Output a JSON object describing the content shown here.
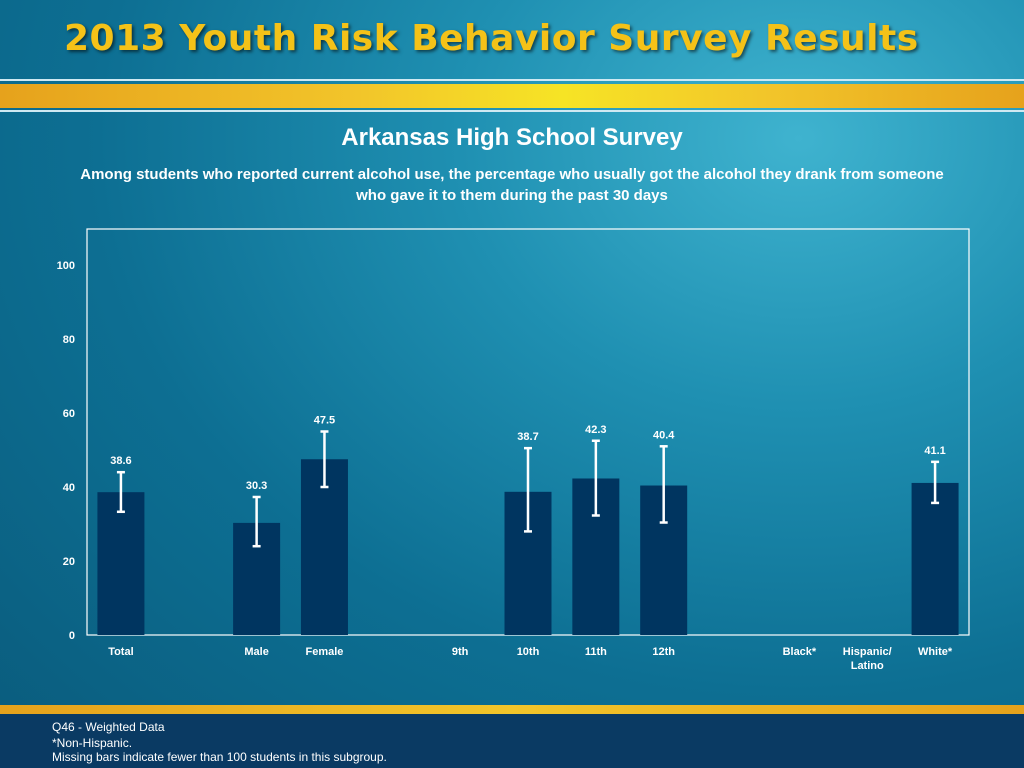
{
  "banner": {
    "title": "2013 Youth Risk Behavior Survey Results"
  },
  "colors": {
    "title_gold": "#f4c218",
    "bar_fill": "#003560",
    "error_bar": "#ffffff",
    "band_gold": "#f2c52a",
    "footer_bg": "#0a3a63"
  },
  "chart_data": {
    "type": "bar",
    "title": "Arkansas High School Survey",
    "subtitle": "Among students who reported current alcohol use, the percentage who usually got the alcohol they drank from someone who gave it to them during the past 30 days",
    "xlabel": "",
    "ylabel": "",
    "ylim": [
      0,
      110
    ],
    "yticks": [
      0,
      20,
      40,
      60,
      80,
      100
    ],
    "grid": false,
    "categories": [
      "Total",
      "",
      "Male",
      "Female",
      "",
      "9th",
      "10th",
      "11th",
      "12th",
      "",
      "Black*",
      "Hispanic/\nLatino",
      "White*"
    ],
    "values": [
      38.6,
      null,
      30.3,
      47.5,
      null,
      null,
      38.7,
      42.3,
      40.4,
      null,
      null,
      null,
      41.1
    ],
    "data_labels": [
      "38.6",
      "",
      "30.3",
      "47.5",
      "",
      "",
      "38.7",
      "42.3",
      "40.4",
      "",
      "",
      "",
      "41.1"
    ],
    "ci_low": [
      33.3,
      null,
      24.0,
      40.0,
      null,
      null,
      28.0,
      32.3,
      30.4,
      null,
      null,
      null,
      35.7
    ],
    "ci_high": [
      44.0,
      null,
      37.3,
      55.0,
      null,
      null,
      50.5,
      52.5,
      51.0,
      null,
      null,
      null,
      46.8
    ]
  },
  "footnotes": {
    "line1": "Q46 - Weighted Data",
    "line2": "*Non-Hispanic.",
    "line3": "Missing bars indicate fewer than 100 students in this subgroup."
  }
}
